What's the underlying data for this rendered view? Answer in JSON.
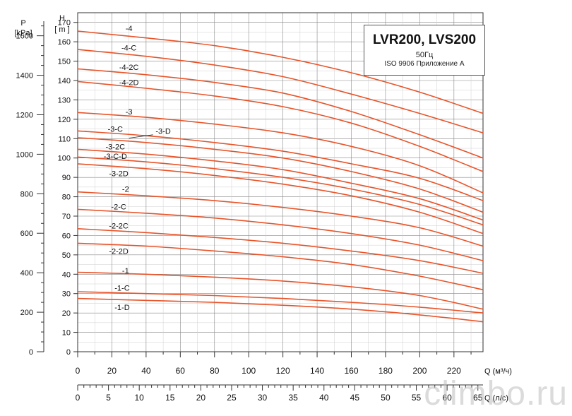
{
  "chart_data": {
    "type": "line",
    "title": "LVR200, LVS200",
    "subtitle": "50Гц",
    "standard": "ISO 9906 Приложение А",
    "left_axis": {
      "label_top": "P",
      "label_unit": "[kPa]",
      "ticks": [
        0,
        200,
        400,
        600,
        800,
        1000,
        1200,
        1400,
        1600
      ]
    },
    "y_axis": {
      "label_top": "H",
      "label_unit": "[ m ]",
      "ylim": [
        0,
        175
      ],
      "ticks": [
        0,
        10,
        20,
        30,
        40,
        50,
        60,
        70,
        80,
        90,
        100,
        110,
        120,
        130,
        140,
        150,
        160,
        170
      ]
    },
    "x_axis": {
      "label": "Q (м³/ч)",
      "xlim": [
        0,
        237
      ],
      "ticks": [
        0,
        20,
        40,
        60,
        80,
        100,
        120,
        140,
        160,
        180,
        200,
        220
      ]
    },
    "x2_axis": {
      "label": "Q (л/с)",
      "ticks": [
        0,
        5,
        10,
        15,
        20,
        25,
        30,
        35,
        40,
        45,
        50,
        55,
        60,
        65
      ]
    },
    "grid": true,
    "line_color": "#e8542a",
    "x": [
      0,
      40,
      80,
      120,
      160,
      200,
      237
    ],
    "series": [
      {
        "name": "-4",
        "values": [
          165.5,
          162,
          158,
          152,
          144,
          134,
          123
        ]
      },
      {
        "name": "-4-C",
        "values": [
          156,
          152.5,
          148,
          142,
          133,
          123,
          113
        ]
      },
      {
        "name": "-4-2C",
        "values": [
          146,
          143,
          139,
          133.5,
          124,
          112,
          100
        ]
      },
      {
        "name": "-4-2D",
        "values": [
          139.5,
          136,
          132,
          126.5,
          118,
          106,
          93
        ]
      },
      {
        "name": "-3",
        "values": [
          123.5,
          121,
          117.5,
          113,
          106,
          96,
          82
        ]
      },
      {
        "name": "-3-C",
        "values": [
          114,
          111.5,
          108,
          103.5,
          97,
          89.5,
          78
        ]
      },
      {
        "name": "-3-D",
        "values": [
          110.5,
          108,
          104.5,
          100,
          93,
          84,
          72
        ]
      },
      {
        "name": "-3-2C",
        "values": [
          104.5,
          102,
          98.5,
          94,
          87,
          79,
          68
        ]
      },
      {
        "name": "-3-C-D",
        "values": [
          100.5,
          98,
          94.5,
          90,
          84,
          76,
          65.5
        ]
      },
      {
        "name": "-3-2D",
        "values": [
          97,
          94.5,
          91,
          86.5,
          80.5,
          72,
          61
        ]
      },
      {
        "name": "-2",
        "values": [
          82.5,
          80.5,
          78,
          74.5,
          70,
          64,
          54.5
        ]
      },
      {
        "name": "-2-C",
        "values": [
          73.5,
          71.5,
          69,
          65.5,
          61,
          55,
          47
        ]
      },
      {
        "name": "-2-2C",
        "values": [
          63.5,
          61.5,
          59,
          56,
          52,
          47,
          40.5
        ]
      },
      {
        "name": "-2-2D",
        "values": [
          56,
          54.5,
          52,
          49,
          45,
          39,
          32
        ]
      },
      {
        "name": "-1",
        "values": [
          41,
          40,
          38.5,
          36.5,
          33.5,
          29,
          22
        ]
      },
      {
        "name": "-1-C",
        "values": [
          31,
          30,
          29,
          27.5,
          25.5,
          23,
          20
        ]
      },
      {
        "name": "-1-D",
        "values": [
          27.5,
          26.5,
          25.5,
          24,
          22,
          19,
          15.5
        ]
      }
    ],
    "labels": [
      {
        "text": "-4",
        "x": 30,
        "y": 167
      },
      {
        "text": "-4-C",
        "x": 30,
        "y": 157
      },
      {
        "text": "-4-2C",
        "x": 30,
        "y": 147
      },
      {
        "text": "-4-2D",
        "x": 30,
        "y": 139
      },
      {
        "text": "-3",
        "x": 30,
        "y": 124
      },
      {
        "text": "-3-C",
        "x": 22,
        "y": 115
      },
      {
        "text": "-3-D",
        "x": 50,
        "y": 114
      },
      {
        "text": "-3-2C",
        "x": 22,
        "y": 106
      },
      {
        "text": "-3-C-D",
        "x": 22,
        "y": 101
      },
      {
        "text": "-3-2D",
        "x": 24,
        "y": 92
      },
      {
        "text": "-2",
        "x": 28,
        "y": 84
      },
      {
        "text": "-2-C",
        "x": 24,
        "y": 75
      },
      {
        "text": "-2-2C",
        "x": 24,
        "y": 65
      },
      {
        "text": "-2-2D",
        "x": 24,
        "y": 52
      },
      {
        "text": "-1",
        "x": 28,
        "y": 42
      },
      {
        "text": "-1-C",
        "x": 26,
        "y": 33
      },
      {
        "text": "-1-D",
        "x": 26,
        "y": 23
      }
    ]
  },
  "watermark": "climbo.ru"
}
